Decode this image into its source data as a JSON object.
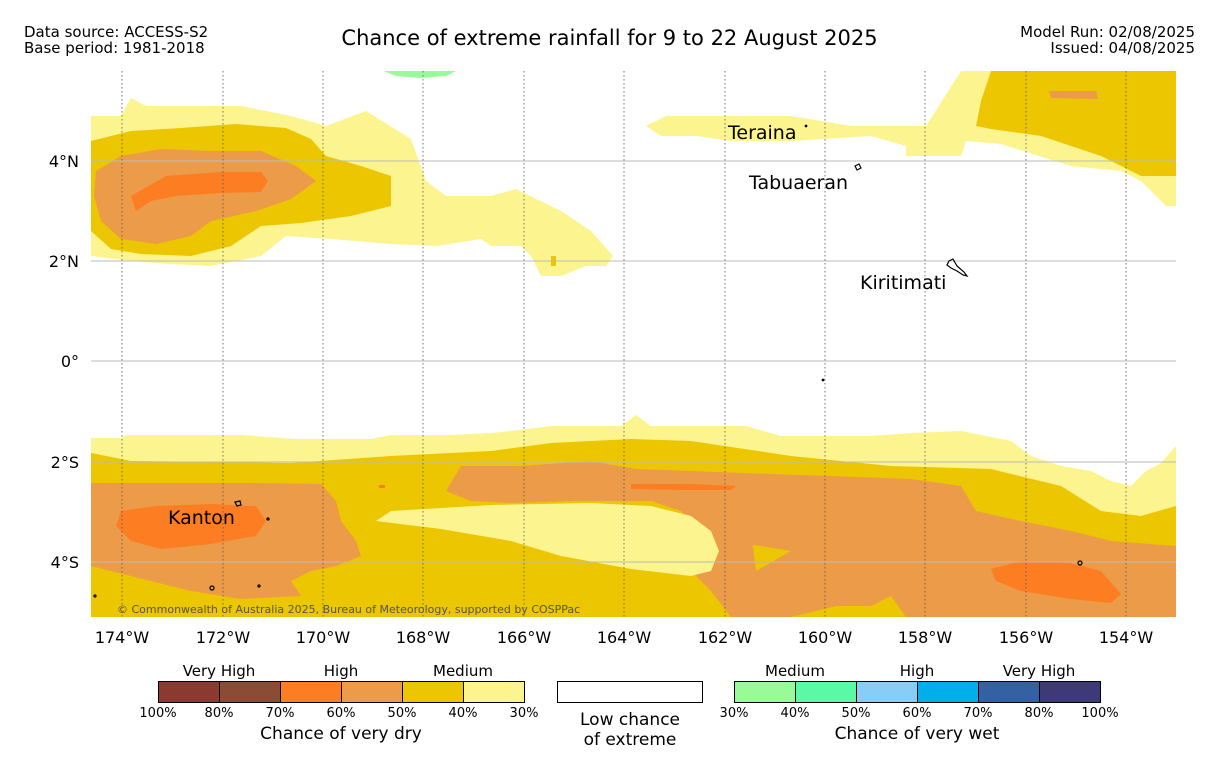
{
  "header": {
    "data_source": "Data source: ACCESS-S2",
    "base_period": "Base period: 1981-2018",
    "title": "Chance of extreme rainfall for 9 to 22 August 2025",
    "model_run": "Model Run: 02/08/2025",
    "issued": "Issued: 04/08/2025"
  },
  "map": {
    "lat_labels": [
      "4°N",
      "2°N",
      "0°",
      "2°S",
      "4°S"
    ],
    "lon_labels": [
      "174°W",
      "172°W",
      "170°W",
      "168°W",
      "166°W",
      "164°W",
      "162°W",
      "160°W",
      "158°W",
      "156°W",
      "154°W"
    ],
    "places": {
      "teraina": "Teraina",
      "tabuaeran": "Tabuaeran",
      "kiritimati": "Kiritimati",
      "kanton": "Kanton"
    },
    "copyright": "© Commonwealth of Australia 2025, Bureau of Meteorology, supported by COSPPac"
  },
  "legend": {
    "dry": {
      "tiers": [
        "Very High",
        "High",
        "Medium"
      ],
      "ticks": [
        "100%",
        "80%",
        "70%",
        "60%",
        "50%",
        "40%",
        "30%"
      ],
      "caption": "Chance of very dry",
      "colors": [
        "#8b3a2f",
        "#8b4c35",
        "#fd7e22",
        "#ec9b48",
        "#ecc600",
        "#fcf48e"
      ]
    },
    "low": {
      "caption_line1": "Low chance",
      "caption_line2": "of extreme"
    },
    "wet": {
      "tiers": [
        "Medium",
        "High",
        "Very High"
      ],
      "ticks": [
        "30%",
        "40%",
        "50%",
        "60%",
        "70%",
        "80%",
        "100%"
      ],
      "caption": "Chance of very wet",
      "colors": [
        "#99fb98",
        "#59f9a6",
        "#87cdf8",
        "#00aee9",
        "#3461a1",
        "#3e3a77"
      ]
    }
  }
}
